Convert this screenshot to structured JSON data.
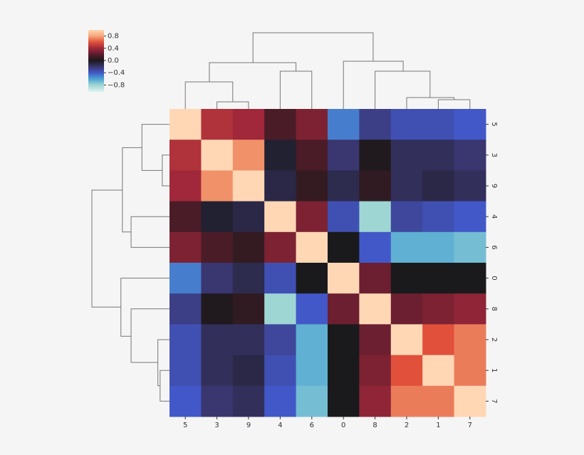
{
  "chart_data": {
    "type": "heatmap",
    "x": [
      "5",
      "3",
      "9",
      "4",
      "6",
      "0",
      "8",
      "2",
      "1",
      "7"
    ],
    "y": [
      "5",
      "3",
      "9",
      "4",
      "6",
      "0",
      "8",
      "2",
      "1",
      "7"
    ],
    "values": [
      [
        1,
        0.45,
        0.4,
        0.15,
        0.3,
        -0.5,
        -0.25,
        -0.35,
        -0.35,
        -0.4
      ],
      [
        0.45,
        1,
        0.75,
        -0.05,
        0.15,
        -0.2,
        0.02,
        -0.15,
        -0.15,
        -0.2
      ],
      [
        0.4,
        0.75,
        1,
        -0.1,
        0.08,
        -0.12,
        0.07,
        -0.15,
        -0.1,
        -0.15
      ],
      [
        0.15,
        -0.05,
        -0.1,
        1,
        0.3,
        -0.35,
        -0.8,
        -0.3,
        -0.35,
        -0.4
      ],
      [
        0.3,
        0.15,
        0.08,
        0.3,
        1,
        0,
        -0.4,
        -0.65,
        -0.65,
        -0.7
      ],
      [
        -0.5,
        -0.2,
        -0.12,
        -0.35,
        0,
        1,
        0.25,
        0,
        0,
        0
      ],
      [
        -0.25,
        0.02,
        0.07,
        -0.8,
        -0.4,
        0.25,
        1,
        0.25,
        0.3,
        0.35
      ],
      [
        -0.35,
        -0.15,
        -0.15,
        -0.3,
        -0.65,
        0,
        0.25,
        1,
        0.6,
        0.7
      ],
      [
        -0.35,
        -0.15,
        -0.1,
        -0.35,
        -0.65,
        0,
        0.3,
        0.6,
        1,
        0.7
      ],
      [
        -0.4,
        -0.2,
        -0.15,
        -0.4,
        -0.7,
        0,
        0.35,
        0.7,
        0.7,
        1
      ]
    ],
    "clim": [
      -1,
      1
    ],
    "colors": [
      "#d6f0ea",
      "#9ed6d4",
      "#4aa3d2",
      "#4258c8",
      "#3a3670",
      "#1a1a1c",
      "#5a1c2c",
      "#a0283a",
      "#e0503a",
      "#f5a779",
      "#ffd7b5"
    ],
    "cticks": [
      0.8,
      0.4,
      {
        "value": 0,
        "label": "0.0"
      },
      {
        "value": -0.4,
        "label": "−0.4"
      },
      {
        "value": -0.8,
        "label": "−0.8"
      }
    ]
  }
}
